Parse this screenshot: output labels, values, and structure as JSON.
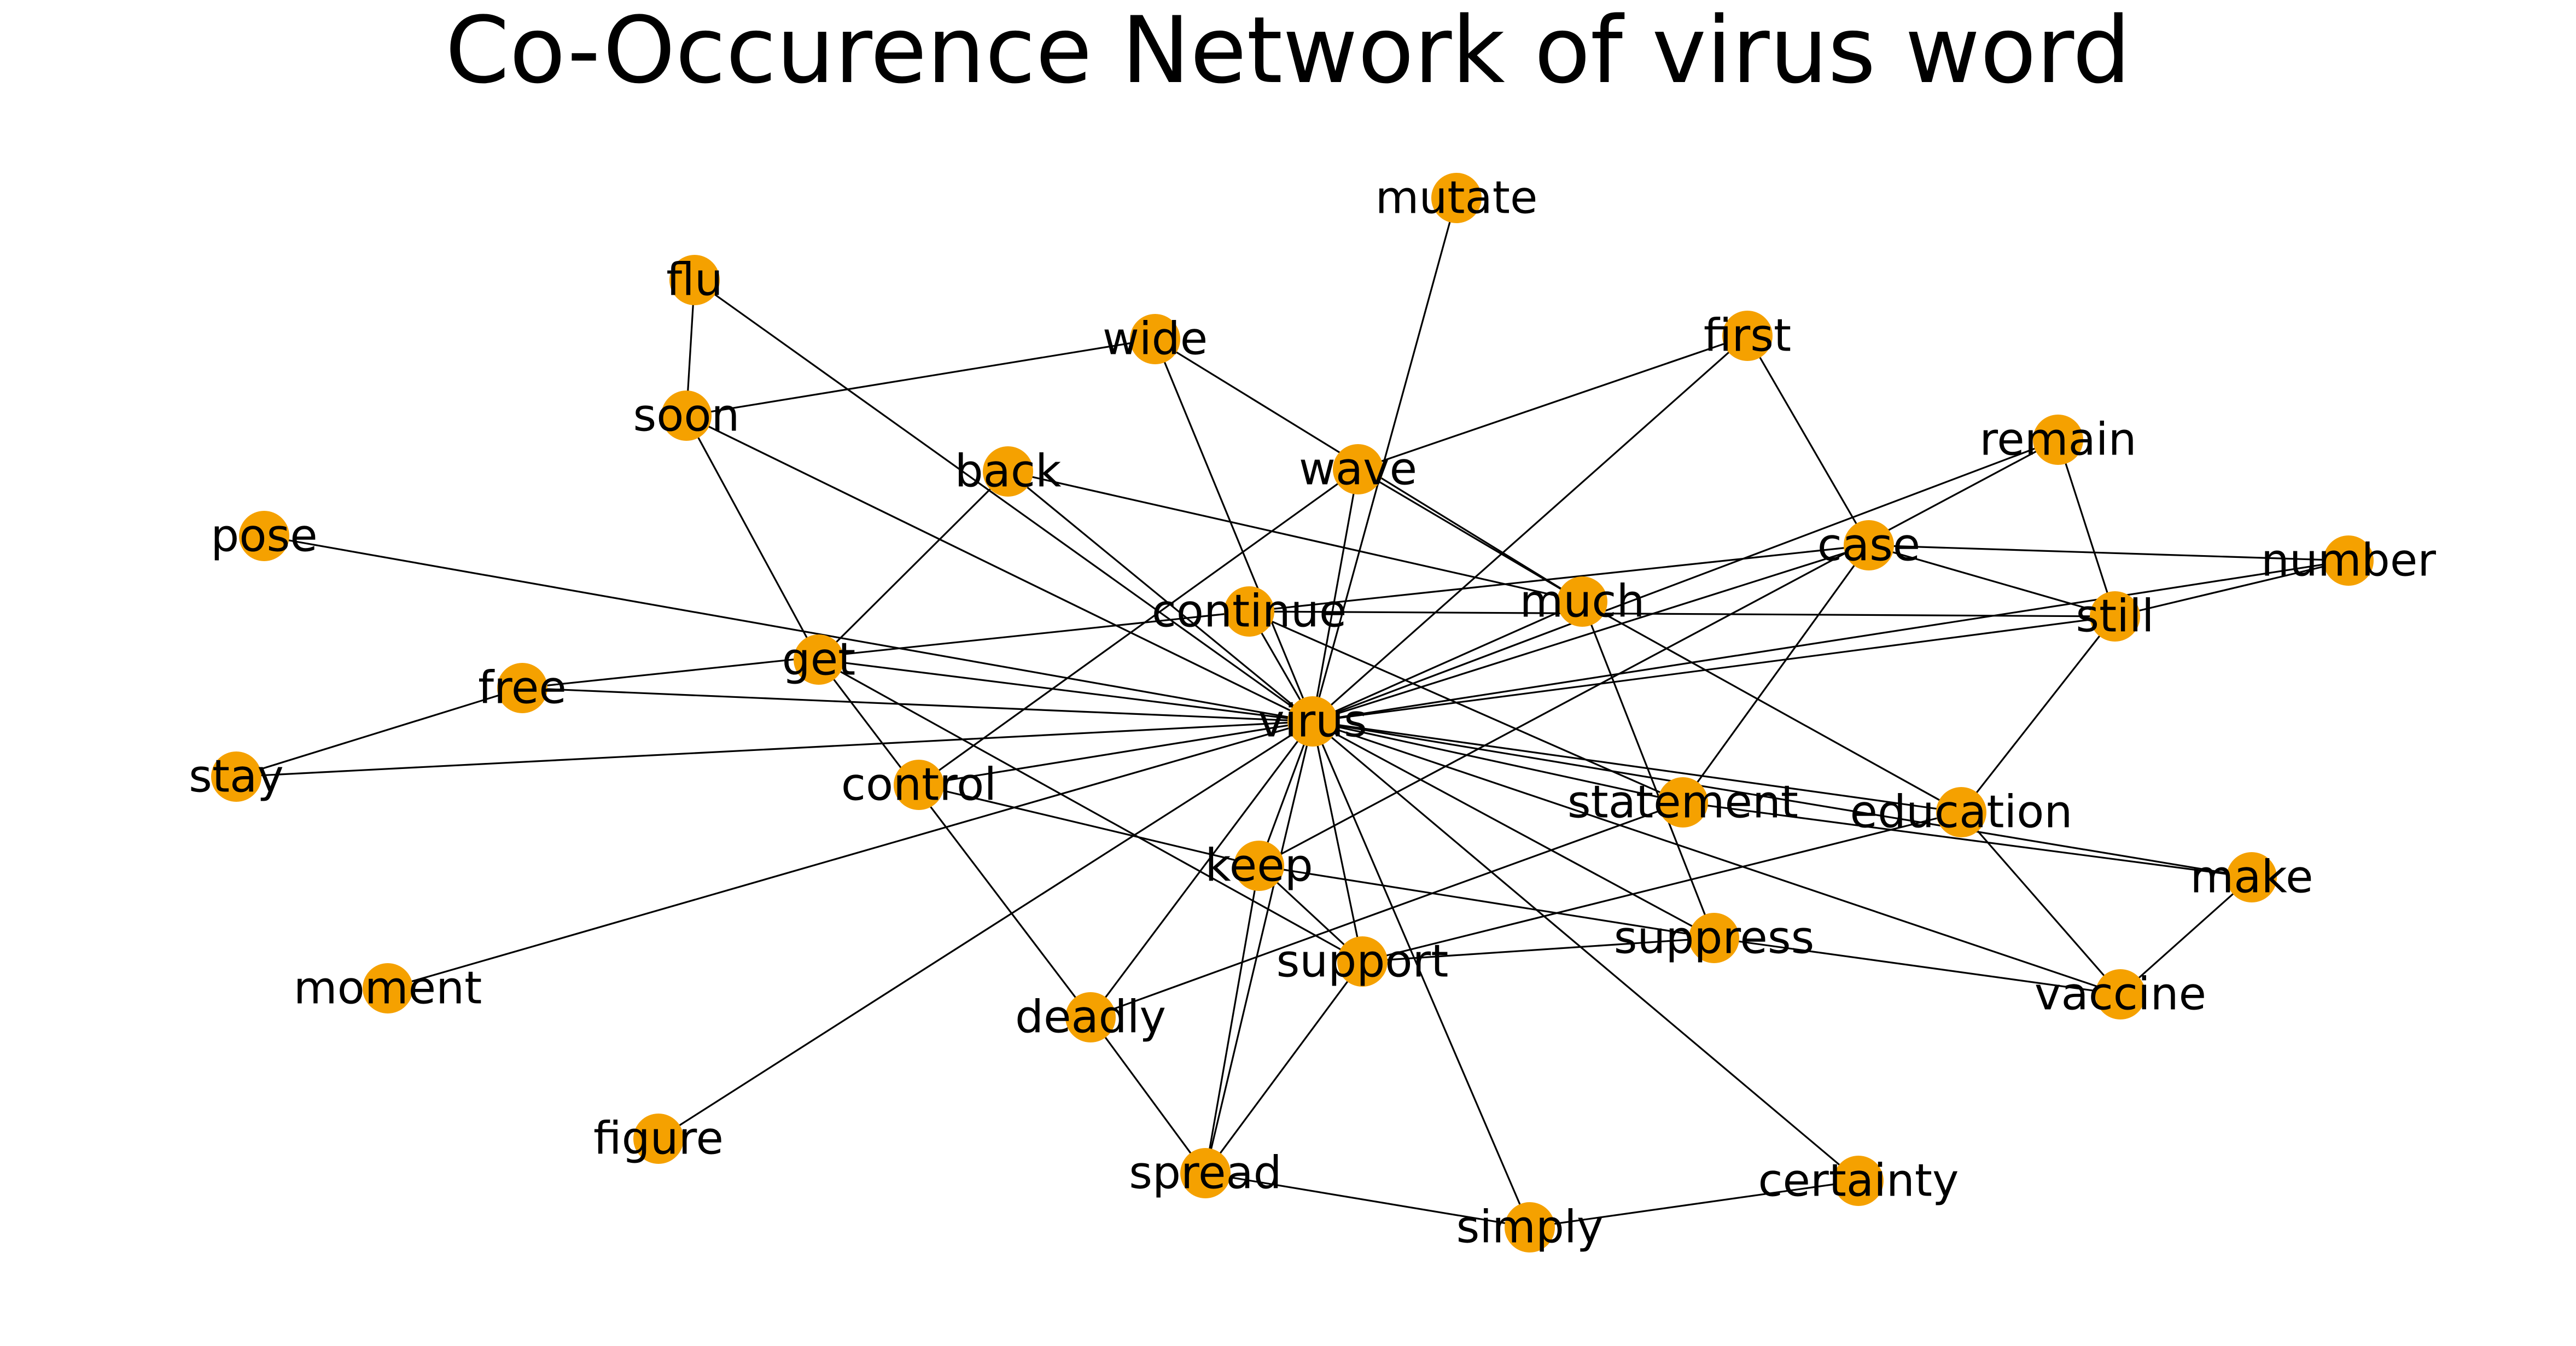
{
  "title": "Co-Occurence Network of virus word",
  "colors": {
    "node": "#f5a100",
    "edge": "#000000",
    "background": "#ffffff"
  },
  "chart_data": {
    "type": "network",
    "nodes": [
      {
        "id": "virus",
        "label": "virus"
      },
      {
        "id": "mutate",
        "label": "mutate"
      },
      {
        "id": "flu",
        "label": "flu"
      },
      {
        "id": "wide",
        "label": "wide"
      },
      {
        "id": "first",
        "label": "first"
      },
      {
        "id": "soon",
        "label": "soon"
      },
      {
        "id": "remain",
        "label": "remain"
      },
      {
        "id": "back",
        "label": "back"
      },
      {
        "id": "wave",
        "label": "wave"
      },
      {
        "id": "pose",
        "label": "pose"
      },
      {
        "id": "case",
        "label": "case"
      },
      {
        "id": "number",
        "label": "number"
      },
      {
        "id": "much",
        "label": "much"
      },
      {
        "id": "continue",
        "label": "continue"
      },
      {
        "id": "still",
        "label": "still"
      },
      {
        "id": "get",
        "label": "get"
      },
      {
        "id": "free",
        "label": "free"
      },
      {
        "id": "stay",
        "label": "stay"
      },
      {
        "id": "control",
        "label": "control"
      },
      {
        "id": "statement",
        "label": "statement"
      },
      {
        "id": "education",
        "label": "education"
      },
      {
        "id": "keep",
        "label": "keep"
      },
      {
        "id": "make",
        "label": "make"
      },
      {
        "id": "suppress",
        "label": "suppress"
      },
      {
        "id": "support",
        "label": "support"
      },
      {
        "id": "moment",
        "label": "moment"
      },
      {
        "id": "vaccine",
        "label": "vaccine"
      },
      {
        "id": "deadly",
        "label": "deadly"
      },
      {
        "id": "figure",
        "label": "figure"
      },
      {
        "id": "spread",
        "label": "spread"
      },
      {
        "id": "certainty",
        "label": "certainty"
      },
      {
        "id": "simply",
        "label": "simply"
      }
    ],
    "edges": [
      [
        "virus",
        "mutate"
      ],
      [
        "virus",
        "flu"
      ],
      [
        "virus",
        "wide"
      ],
      [
        "virus",
        "first"
      ],
      [
        "virus",
        "soon"
      ],
      [
        "virus",
        "remain"
      ],
      [
        "virus",
        "back"
      ],
      [
        "virus",
        "wave"
      ],
      [
        "virus",
        "pose"
      ],
      [
        "virus",
        "case"
      ],
      [
        "virus",
        "number"
      ],
      [
        "virus",
        "much"
      ],
      [
        "virus",
        "continue"
      ],
      [
        "virus",
        "still"
      ],
      [
        "virus",
        "get"
      ],
      [
        "virus",
        "free"
      ],
      [
        "virus",
        "stay"
      ],
      [
        "virus",
        "control"
      ],
      [
        "virus",
        "statement"
      ],
      [
        "virus",
        "education"
      ],
      [
        "virus",
        "keep"
      ],
      [
        "virus",
        "make"
      ],
      [
        "virus",
        "suppress"
      ],
      [
        "virus",
        "support"
      ],
      [
        "virus",
        "moment"
      ],
      [
        "virus",
        "vaccine"
      ],
      [
        "virus",
        "deadly"
      ],
      [
        "virus",
        "figure"
      ],
      [
        "virus",
        "spread"
      ],
      [
        "virus",
        "certainty"
      ],
      [
        "virus",
        "simply"
      ],
      [
        "flu",
        "soon"
      ],
      [
        "soon",
        "wide"
      ],
      [
        "soon",
        "get"
      ],
      [
        "wide",
        "much"
      ],
      [
        "wave",
        "first"
      ],
      [
        "wave",
        "much"
      ],
      [
        "wave",
        "control"
      ],
      [
        "back",
        "get"
      ],
      [
        "back",
        "much"
      ],
      [
        "first",
        "case"
      ],
      [
        "remain",
        "still"
      ],
      [
        "remain",
        "keep"
      ],
      [
        "case",
        "number"
      ],
      [
        "case",
        "still"
      ],
      [
        "case",
        "statement"
      ],
      [
        "case",
        "continue"
      ],
      [
        "continue",
        "still"
      ],
      [
        "continue",
        "free"
      ],
      [
        "continue",
        "statement"
      ],
      [
        "much",
        "education"
      ],
      [
        "much",
        "suppress"
      ],
      [
        "still",
        "number"
      ],
      [
        "still",
        "education"
      ],
      [
        "get",
        "deadly"
      ],
      [
        "get",
        "support"
      ],
      [
        "stay",
        "free"
      ],
      [
        "control",
        "keep"
      ],
      [
        "statement",
        "deadly"
      ],
      [
        "education",
        "support"
      ],
      [
        "education",
        "vaccine"
      ],
      [
        "keep",
        "suppress"
      ],
      [
        "keep",
        "spread"
      ],
      [
        "keep",
        "support"
      ],
      [
        "make",
        "vaccine"
      ],
      [
        "make",
        "statement"
      ],
      [
        "suppress",
        "support"
      ],
      [
        "suppress",
        "vaccine"
      ],
      [
        "deadly",
        "spread"
      ],
      [
        "support",
        "spread"
      ],
      [
        "spread",
        "simply"
      ],
      [
        "simply",
        "certainty"
      ]
    ]
  }
}
